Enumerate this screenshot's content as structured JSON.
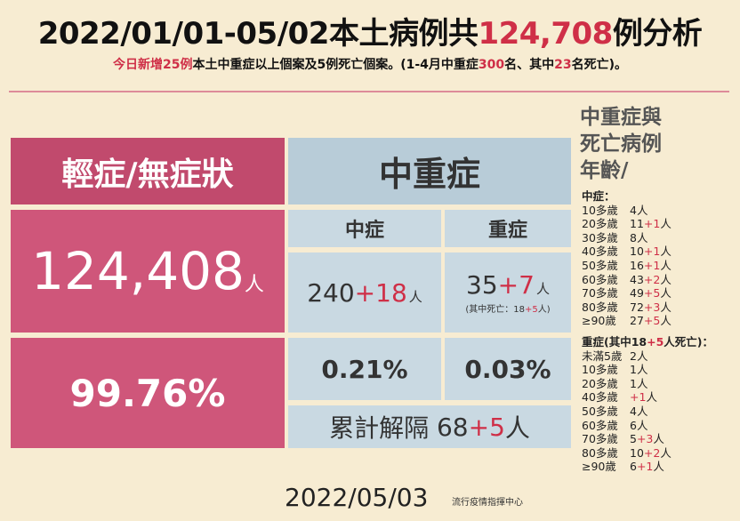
{
  "title": {
    "a": "2022/01/01-05/02本土病例共",
    "b": "124,708",
    "c": "例分析"
  },
  "subtitle": {
    "a": "今日新增",
    "b": "25例",
    "c": "本土中重症以上個案及5例死亡個案。(1-4月中重症",
    "d": "300",
    "e": "名、其中",
    "f": "23",
    "g": "名死亡)。"
  },
  "mild": {
    "header": "輕症/無症狀",
    "count": "124,408",
    "unit": "人",
    "percent": "99.76%"
  },
  "severe": {
    "header": "中重症",
    "moderate": {
      "label": "中症",
      "base": "240",
      "add": "+18",
      "unit": "人",
      "percent": "0.21%"
    },
    "critical": {
      "label": "重症",
      "base": "35",
      "add": "+7",
      "unit": "人",
      "note_a": "(其中死亡：",
      "note_base": "18",
      "note_add": "+5",
      "note_c": "人)",
      "percent": "0.03%"
    },
    "isolation": {
      "label": "累計解隔",
      "base": "68",
      "add": "+5",
      "unit": "人"
    }
  },
  "date": "2022/05/03",
  "source": "流行疫情指揮中心",
  "side": {
    "title_lines": [
      "中重症與",
      "死亡病例",
      "年齡/"
    ],
    "moderate_header": "中症：",
    "moderate_rows": [
      {
        "age": "10多歲",
        "base": "4人",
        "add": ""
      },
      {
        "age": "20多歲",
        "base": "11",
        "add": "+1",
        "unit": "人"
      },
      {
        "age": "30多歲",
        "base": "8人",
        "add": ""
      },
      {
        "age": "40多歲",
        "base": "10",
        "add": "+1",
        "unit": "人"
      },
      {
        "age": "50多歲",
        "base": "16",
        "add": "+1",
        "unit": "人"
      },
      {
        "age": "60多歲",
        "base": "43",
        "add": "+2",
        "unit": "人"
      },
      {
        "age": "70多歲",
        "base": "49",
        "add": "+5",
        "unit": "人"
      },
      {
        "age": "80多歲",
        "base": "72",
        "add": "+3",
        "unit": "人"
      },
      {
        "age": "≥90歲",
        "base": "27",
        "add": "+5",
        "unit": "人"
      }
    ],
    "critical_header": {
      "a": "重症(其中18",
      "b": "+5",
      "c": "人死亡)："
    },
    "critical_rows": [
      {
        "age": "未滿5歲",
        "base": "2人",
        "add": ""
      },
      {
        "age": "10多歲",
        "base": "1人",
        "add": ""
      },
      {
        "age": "20多歲",
        "base": "1人",
        "add": ""
      },
      {
        "age": "40多歲",
        "base": "",
        "add": "+1",
        "unit": "人"
      },
      {
        "age": "50多歲",
        "base": "4人",
        "add": ""
      },
      {
        "age": "60多歲",
        "base": "6人",
        "add": ""
      },
      {
        "age": "70多歲",
        "base": "5",
        "add": "+3",
        "unit": "人"
      },
      {
        "age": "80多歲",
        "base": "10",
        "add": "+2",
        "unit": "人"
      },
      {
        "age": "≥90歲",
        "base": "6",
        "add": "+1",
        "unit": "人"
      }
    ]
  }
}
